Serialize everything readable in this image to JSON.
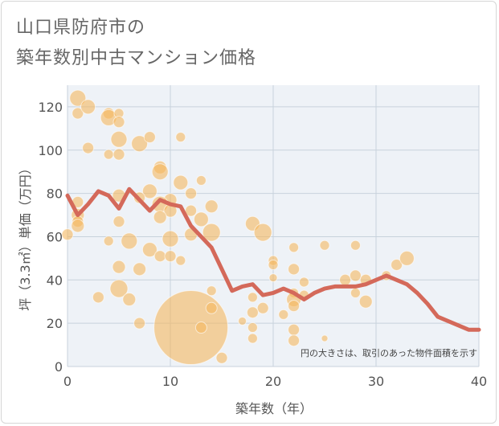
{
  "title_line1": "山口県防府市の",
  "title_line2": "築年数別中古マンション価格",
  "note": "円の大きさは、取引のあった物件面積を示す",
  "colors": {
    "bubble": "#f5b85f",
    "line": "#d4695a",
    "grid": "#c8d2dc",
    "plot_bg": "#eef2f7"
  },
  "chart_data": {
    "type": "scatter",
    "xlabel": "築年数（年）",
    "ylabel": "坪（3.3㎡）単価（万円）",
    "xlim": [
      0,
      40
    ],
    "ylim": [
      0,
      130
    ],
    "xticks": [
      0,
      10,
      20,
      30,
      40
    ],
    "yticks": [
      0,
      20,
      40,
      60,
      80,
      100,
      120
    ],
    "grid": true,
    "bubbles": [
      {
        "x": 1,
        "y": 124,
        "r": 10
      },
      {
        "x": 1,
        "y": 117,
        "r": 7
      },
      {
        "x": 2,
        "y": 120,
        "r": 9
      },
      {
        "x": 2,
        "y": 101,
        "r": 7
      },
      {
        "x": 4,
        "y": 117,
        "r": 7
      },
      {
        "x": 4,
        "y": 115,
        "r": 10
      },
      {
        "x": 5,
        "y": 117,
        "r": 6
      },
      {
        "x": 5,
        "y": 113,
        "r": 7
      },
      {
        "x": 5,
        "y": 105,
        "r": 10
      },
      {
        "x": 4,
        "y": 98,
        "r": 6
      },
      {
        "x": 5,
        "y": 98,
        "r": 7
      },
      {
        "x": 7,
        "y": 103,
        "r": 10
      },
      {
        "x": 8,
        "y": 106,
        "r": 7
      },
      {
        "x": 11,
        "y": 106,
        "r": 6
      },
      {
        "x": 9,
        "y": 92,
        "r": 8
      },
      {
        "x": 9,
        "y": 90,
        "r": 10
      },
      {
        "x": 11,
        "y": 85,
        "r": 9
      },
      {
        "x": 12,
        "y": 80,
        "r": 7
      },
      {
        "x": 13,
        "y": 86,
        "r": 6
      },
      {
        "x": 8,
        "y": 81,
        "r": 9
      },
      {
        "x": 10,
        "y": 77,
        "r": 8
      },
      {
        "x": 5,
        "y": 79,
        "r": 8
      },
      {
        "x": 7,
        "y": 78,
        "r": 7
      },
      {
        "x": 9,
        "y": 75,
        "r": 10
      },
      {
        "x": 10,
        "y": 72,
        "r": 8
      },
      {
        "x": 12,
        "y": 72,
        "r": 7
      },
      {
        "x": 14,
        "y": 74,
        "r": 8
      },
      {
        "x": 1,
        "y": 76,
        "r": 7
      },
      {
        "x": 1,
        "y": 70,
        "r": 8
      },
      {
        "x": 1,
        "y": 67,
        "r": 7
      },
      {
        "x": 1,
        "y": 65,
        "r": 8
      },
      {
        "x": 0,
        "y": 61,
        "r": 7
      },
      {
        "x": 5,
        "y": 67,
        "r": 7
      },
      {
        "x": 9,
        "y": 69,
        "r": 8
      },
      {
        "x": 13,
        "y": 68,
        "r": 9
      },
      {
        "x": 12,
        "y": 61,
        "r": 8
      },
      {
        "x": 14,
        "y": 62,
        "r": 11
      },
      {
        "x": 6,
        "y": 58,
        "r": 10
      },
      {
        "x": 4,
        "y": 58,
        "r": 6
      },
      {
        "x": 10,
        "y": 59,
        "r": 10
      },
      {
        "x": 8,
        "y": 54,
        "r": 9
      },
      {
        "x": 9,
        "y": 51,
        "r": 7
      },
      {
        "x": 10,
        "y": 51,
        "r": 7
      },
      {
        "x": 11,
        "y": 49,
        "r": 6
      },
      {
        "x": 5,
        "y": 46,
        "r": 8
      },
      {
        "x": 7,
        "y": 45,
        "r": 8
      },
      {
        "x": 5,
        "y": 36,
        "r": 11
      },
      {
        "x": 3,
        "y": 32,
        "r": 7
      },
      {
        "x": 6,
        "y": 31,
        "r": 8
      },
      {
        "x": 7,
        "y": 20,
        "r": 7
      },
      {
        "x": 12,
        "y": 18,
        "r": 46
      },
      {
        "x": 13,
        "y": 18,
        "r": 7
      },
      {
        "x": 14,
        "y": 27,
        "r": 7
      },
      {
        "x": 14,
        "y": 35,
        "r": 6
      },
      {
        "x": 15,
        "y": 4,
        "r": 7
      },
      {
        "x": 18,
        "y": 66,
        "r": 9
      },
      {
        "x": 19,
        "y": 62,
        "r": 11
      },
      {
        "x": 20,
        "y": 49,
        "r": 6
      },
      {
        "x": 20,
        "y": 47,
        "r": 6
      },
      {
        "x": 20,
        "y": 41,
        "r": 5
      },
      {
        "x": 18,
        "y": 32,
        "r": 6
      },
      {
        "x": 19,
        "y": 27,
        "r": 7
      },
      {
        "x": 18,
        "y": 25,
        "r": 7
      },
      {
        "x": 17,
        "y": 21,
        "r": 5
      },
      {
        "x": 18,
        "y": 18,
        "r": 6
      },
      {
        "x": 18,
        "y": 13,
        "r": 6
      },
      {
        "x": 21,
        "y": 24,
        "r": 6
      },
      {
        "x": 22,
        "y": 55,
        "r": 6
      },
      {
        "x": 22,
        "y": 45,
        "r": 7
      },
      {
        "x": 22,
        "y": 34,
        "r": 6
      },
      {
        "x": 22,
        "y": 31,
        "r": 9
      },
      {
        "x": 22,
        "y": 28,
        "r": 7
      },
      {
        "x": 23,
        "y": 39,
        "r": 6
      },
      {
        "x": 23,
        "y": 33,
        "r": 6
      },
      {
        "x": 22,
        "y": 17,
        "r": 7
      },
      {
        "x": 22,
        "y": 12,
        "r": 7
      },
      {
        "x": 25,
        "y": 56,
        "r": 6
      },
      {
        "x": 25,
        "y": 13,
        "r": 4
      },
      {
        "x": 27,
        "y": 40,
        "r": 7
      },
      {
        "x": 28,
        "y": 56,
        "r": 6
      },
      {
        "x": 28,
        "y": 42,
        "r": 7
      },
      {
        "x": 28,
        "y": 34,
        "r": 6
      },
      {
        "x": 29,
        "y": 40,
        "r": 7
      },
      {
        "x": 29,
        "y": 30,
        "r": 8
      },
      {
        "x": 31,
        "y": 42,
        "r": 6
      },
      {
        "x": 32,
        "y": 47,
        "r": 7
      },
      {
        "x": 33,
        "y": 50,
        "r": 9
      }
    ],
    "line": {
      "x": [
        0,
        1,
        2,
        3,
        4,
        5,
        6,
        7,
        8,
        9,
        10,
        11,
        12,
        13,
        14,
        15,
        16,
        17,
        18,
        19,
        20,
        21,
        22,
        23,
        24,
        25,
        26,
        27,
        28,
        29,
        30,
        31,
        32,
        33,
        34,
        35,
        36,
        37,
        38,
        39,
        40
      ],
      "y": [
        79,
        70,
        75,
        81,
        79,
        73,
        82,
        77,
        72,
        77,
        75,
        74,
        65,
        60,
        55,
        45,
        35,
        37,
        38,
        33,
        34,
        36,
        34,
        31,
        34,
        36,
        37,
        37,
        37,
        38,
        40,
        42,
        40,
        38,
        34,
        29,
        23,
        21,
        19,
        17,
        17
      ]
    }
  }
}
